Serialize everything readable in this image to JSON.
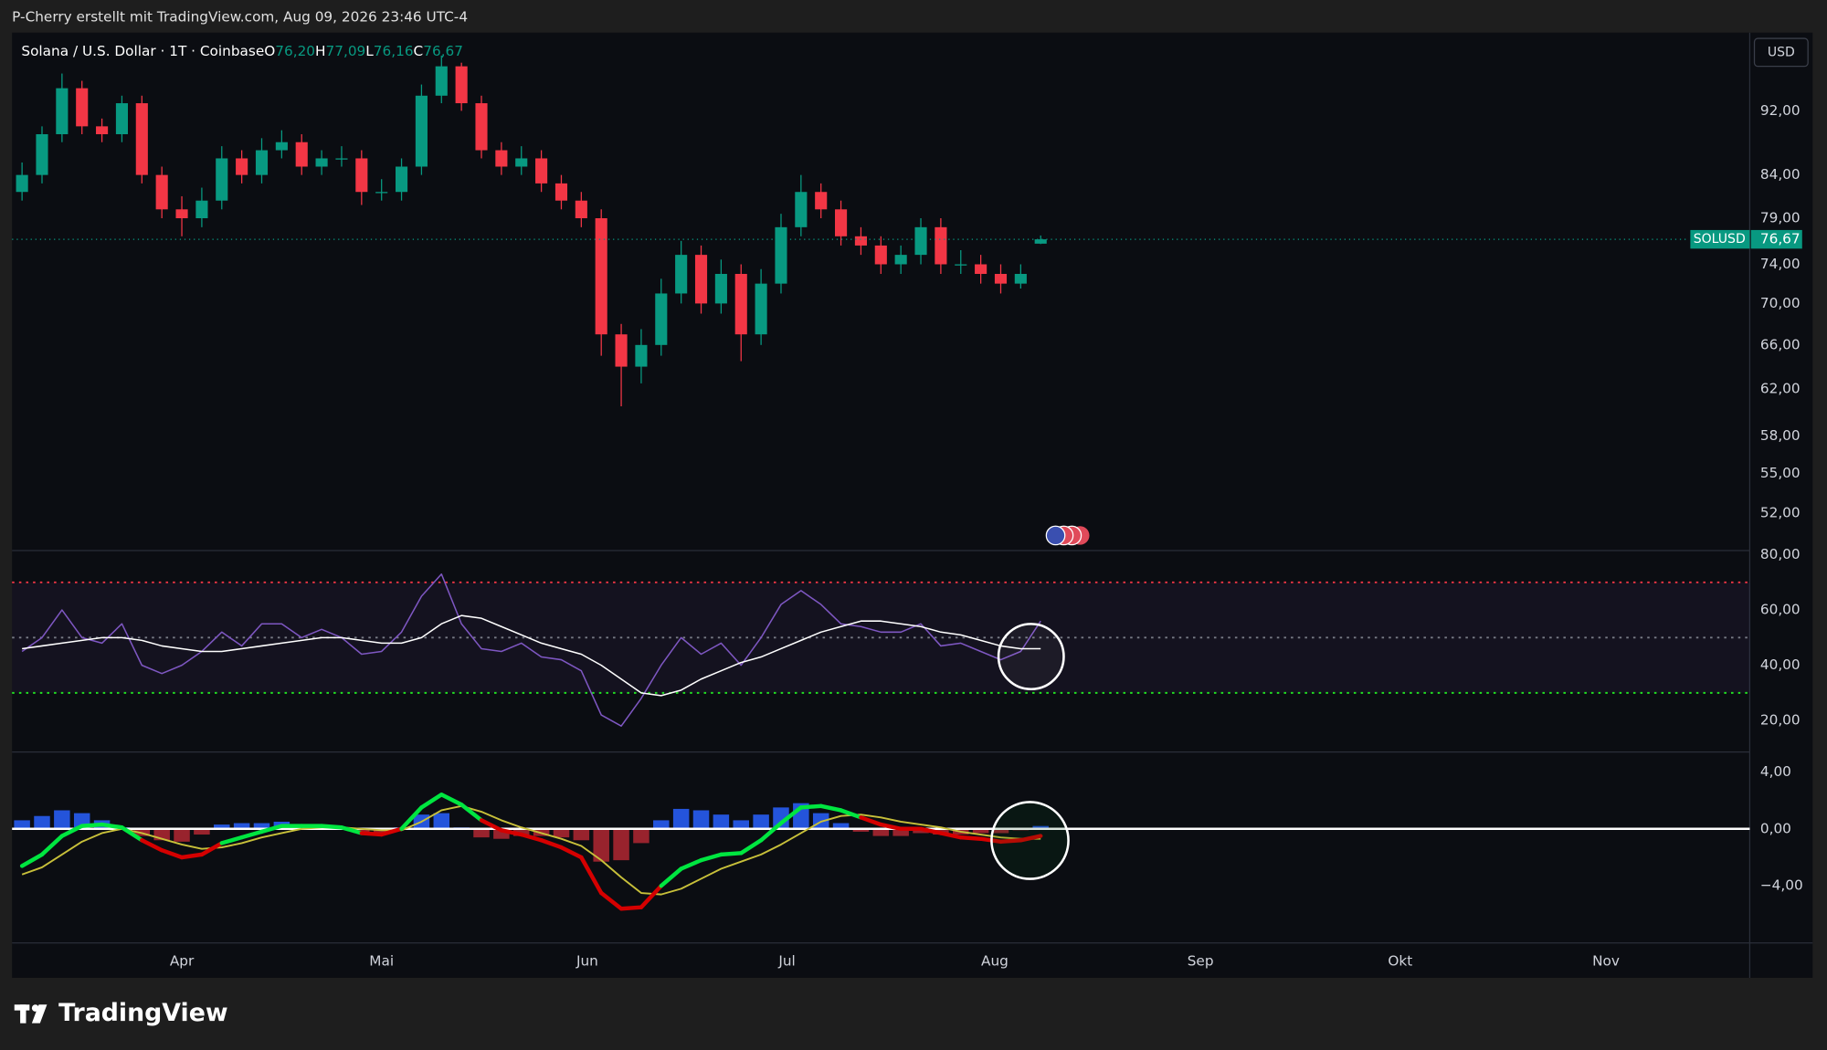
{
  "page": {
    "attribution": "P-Cherry erstellt mit TradingView.com, Aug 09, 2026 23:46 UTC-4",
    "currency": "USD",
    "brand": "TradingView"
  },
  "chart_data": [
    {
      "type": "candlestick",
      "title": "Solana / U.S. Dollar · 1T · Coinbase",
      "ohlc_legend": [
        {
          "key": "O",
          "value": "76,20"
        },
        {
          "key": "H",
          "value": "77,09"
        },
        {
          "key": "L",
          "value": "76,16"
        },
        {
          "key": "C",
          "value": "76,67"
        }
      ],
      "symbol_tag": "SOLUSD",
      "last_price_label": "76,67",
      "color_up": "#089981",
      "color_down": "#f23645",
      "log": true,
      "grid": false,
      "open": [
        82,
        84,
        89,
        95,
        90,
        89,
        93,
        84,
        80,
        79,
        81,
        86,
        84,
        87,
        88,
        85,
        86,
        86,
        82,
        82,
        85,
        94,
        98,
        93,
        87,
        85,
        86,
        83,
        81,
        79,
        67,
        64,
        66,
        71,
        75,
        70,
        73,
        67,
        72,
        78,
        82,
        80,
        77,
        76,
        74,
        75,
        78,
        74,
        74,
        73,
        72,
        76.2
      ],
      "high": [
        85.5,
        90,
        97,
        96,
        91,
        94,
        94,
        85,
        81.5,
        82.5,
        87.5,
        87,
        88.5,
        89.5,
        89,
        87,
        87.5,
        87,
        83.5,
        86,
        95.5,
        99.5,
        98.5,
        94,
        88,
        87.5,
        87,
        84,
        82,
        80,
        68,
        67.5,
        72.5,
        76.5,
        76,
        74.5,
        74,
        73.5,
        79.5,
        84,
        83,
        81,
        78,
        77,
        76,
        79,
        79,
        75.5,
        75,
        74,
        74,
        77.09
      ],
      "low": [
        81,
        83,
        88,
        89,
        88,
        88,
        83,
        79,
        77,
        78,
        80,
        83,
        83,
        86,
        84,
        84,
        85,
        80.5,
        81,
        81,
        84,
        93,
        92,
        86,
        84,
        84,
        82,
        80,
        78,
        65,
        60.5,
        62.5,
        65,
        70,
        69,
        69,
        64.5,
        66,
        71,
        77,
        79,
        76,
        75,
        73,
        73,
        74,
        73,
        73,
        72,
        71,
        71.5,
        76.16
      ],
      "close": [
        84,
        89,
        95,
        90,
        89,
        93,
        84,
        80,
        79,
        81,
        86,
        84,
        87,
        88,
        85,
        86,
        86,
        82,
        82,
        85,
        94,
        98,
        93,
        87,
        85,
        86,
        83,
        81,
        79,
        67,
        64,
        66,
        71,
        75,
        70,
        73,
        67,
        72,
        78,
        82,
        80,
        77,
        76,
        74,
        75,
        78,
        74,
        74,
        73,
        72,
        73,
        76.67
      ],
      "ylim": [
        49.3,
        102.8
      ],
      "yticks": [
        {
          "value": 92,
          "label": "92,00"
        },
        {
          "value": 84,
          "label": "84,00"
        },
        {
          "value": 79,
          "label": "79,00"
        },
        {
          "value": 74,
          "label": "74,00"
        },
        {
          "value": 70,
          "label": "70,00"
        },
        {
          "value": 66,
          "label": "66,00"
        },
        {
          "value": 62,
          "label": "62,00"
        },
        {
          "value": 58,
          "label": "58,00"
        },
        {
          "value": 55,
          "label": "55,00"
        },
        {
          "value": 52,
          "label": "52,00"
        }
      ],
      "xlim": [
        -0.5,
        86.5
      ],
      "xticks": [
        {
          "value": 8,
          "label": "Apr"
        },
        {
          "value": 18,
          "label": "Mai"
        },
        {
          "value": 28.3,
          "label": "Jun"
        },
        {
          "value": 38.3,
          "label": "Jul"
        },
        {
          "value": 48.7,
          "label": "Aug"
        },
        {
          "value": 59,
          "label": "Sep"
        },
        {
          "value": 69,
          "label": "Okt"
        },
        {
          "value": 79.3,
          "label": "Nov"
        }
      ]
    },
    {
      "type": "line",
      "band_color": "rgba(126,87,194,0.08)",
      "series": [
        {
          "color": "#7e57c2",
          "values": [
            45,
            50,
            60,
            50,
            48,
            55,
            40,
            37,
            40,
            45,
            52,
            47,
            55,
            55,
            50,
            53,
            50,
            44,
            45,
            52,
            65,
            73,
            55,
            46,
            45,
            48,
            43,
            42,
            38,
            22,
            18,
            28,
            40,
            50,
            44,
            48,
            40,
            50,
            62,
            67,
            62,
            55,
            54,
            52,
            52,
            55,
            47,
            48,
            45,
            42,
            45,
            56
          ]
        },
        {
          "color": "#ffffff",
          "values": [
            46,
            47,
            48,
            49,
            50,
            50,
            49,
            47,
            46,
            45,
            45,
            46,
            47,
            48,
            49,
            50,
            50,
            49,
            48,
            48,
            50,
            55,
            58,
            57,
            54,
            51,
            48,
            46,
            44,
            40,
            35,
            30,
            29,
            31,
            35,
            38,
            41,
            43,
            46,
            49,
            52,
            54,
            56,
            56,
            55,
            54,
            52,
            51,
            49,
            47,
            46,
            46
          ]
        }
      ],
      "hlines": [
        {
          "value": 70,
          "color": "#f23645"
        },
        {
          "value": 50,
          "color": "#787b86"
        },
        {
          "value": 30,
          "color": "#22e022"
        }
      ],
      "ylim": [
        8.6,
        81.5
      ],
      "yticks": [
        {
          "value": 80,
          "label": "80,00"
        },
        {
          "value": 60,
          "label": "60,00"
        },
        {
          "value": 40,
          "label": "40,00"
        },
        {
          "value": 20,
          "label": "20,00"
        }
      ]
    },
    {
      "type": "macd",
      "color_up": "#00e640",
      "color_down": "#d50000",
      "zero_color": "#ffffff",
      "macd": [
        -2.6,
        -1.8,
        -0.5,
        0.2,
        0.3,
        0.1,
        -0.8,
        -1.5,
        -2.0,
        -1.8,
        -1.0,
        -0.6,
        -0.2,
        0.2,
        0.2,
        0.2,
        0.1,
        -0.3,
        -0.4,
        0.0,
        1.5,
        2.4,
        1.7,
        0.6,
        -0.1,
        -0.4,
        -0.8,
        -1.3,
        -2.0,
        -4.5,
        -5.6,
        -5.5,
        -4.0,
        -2.8,
        -2.2,
        -1.8,
        -1.7,
        -0.8,
        0.4,
        1.5,
        1.6,
        1.3,
        0.8,
        0.3,
        0.0,
        0.0,
        -0.3,
        -0.6,
        -0.7,
        -0.9,
        -0.8,
        -0.5
      ],
      "signal": {
        "color": "#c8c03a",
        "values": [
          -3.2,
          -2.7,
          -1.8,
          -0.9,
          -0.3,
          0.0,
          -0.3,
          -0.7,
          -1.1,
          -1.4,
          -1.3,
          -1.0,
          -0.6,
          -0.3,
          0.0,
          0.1,
          0.1,
          0.0,
          -0.1,
          -0.1,
          0.5,
          1.3,
          1.6,
          1.2,
          0.6,
          0.1,
          -0.3,
          -0.7,
          -1.2,
          -2.2,
          -3.4,
          -4.5,
          -4.6,
          -4.2,
          -3.5,
          -2.8,
          -2.3,
          -1.8,
          -1.1,
          -0.3,
          0.5,
          0.9,
          1.0,
          0.8,
          0.5,
          0.3,
          0.1,
          -0.2,
          -0.4,
          -0.6,
          -0.7,
          -0.7
        ]
      },
      "histogram": {
        "color_up": "#2962ff",
        "color_down": "#b22833",
        "values": [
          0.6,
          0.9,
          1.3,
          1.1,
          0.6,
          0.1,
          -0.5,
          -0.8,
          -0.9,
          -0.4,
          0.3,
          0.4,
          0.4,
          0.5,
          0.2,
          0.1,
          0.0,
          -0.3,
          -0.3,
          0.1,
          1.0,
          1.1,
          0.1,
          -0.6,
          -0.7,
          -0.5,
          -0.5,
          -0.6,
          -0.8,
          -2.3,
          -2.2,
          -1.0,
          0.6,
          1.4,
          1.3,
          1.0,
          0.6,
          1.0,
          1.5,
          1.8,
          1.1,
          0.4,
          -0.2,
          -0.5,
          -0.5,
          -0.3,
          -0.4,
          -0.4,
          -0.3,
          -0.3,
          -0.1,
          0.2
        ]
      },
      "ylim": [
        -8,
        5.39
      ],
      "yticks": [
        {
          "value": 4,
          "label": "4,00"
        },
        {
          "value": 0,
          "label": "0,00"
        },
        {
          "value": -4,
          "label": "−4,00"
        }
      ]
    }
  ]
}
